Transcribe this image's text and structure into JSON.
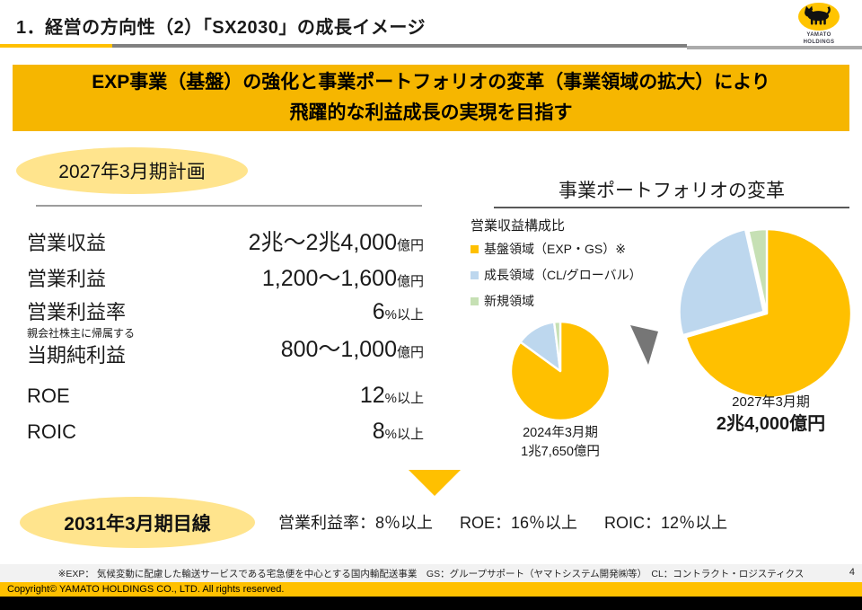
{
  "header": {
    "title": "1．経営の方向性（2）「SX2030」の成長イメージ",
    "logo": {
      "line1": "YAMATO",
      "line2": "HOLDINGS"
    }
  },
  "banner": {
    "line1": "EXP事業（基盤）の強化と事業ポートフォリオの変革（事業領域の拡大）により",
    "line2": "飛躍的な利益成長の実現を目指す"
  },
  "plan": {
    "badge": "2027年3月期計画",
    "rows": [
      {
        "label": "営業収益",
        "num": "2兆～2兆4,000",
        "unit": "億円"
      },
      {
        "label": "営業利益",
        "num": "1,200～1,600",
        "unit": "億円"
      },
      {
        "label": "営業利益率",
        "num": "6",
        "unit": "%以上"
      },
      {
        "label": "当期純利益",
        "sublabel": "親会社株主に帰属する",
        "num": "800～1,000",
        "unit": "億円"
      },
      {
        "label": "ROE",
        "num": "12",
        "unit": "%以上"
      },
      {
        "label": "ROIC",
        "num": "8",
        "unit": "%以上"
      }
    ]
  },
  "portfolio": {
    "title": "事業ポートフォリオの変革",
    "legend_title": "営業収益構成比",
    "legend": [
      {
        "label": "基盤領域（EXP・GS）※",
        "color": "#FFC000"
      },
      {
        "label": "成長領域（CL/グローバル）",
        "color": "#BDD7EE"
      },
      {
        "label": "新規領域",
        "color": "#C6E0B4"
      }
    ]
  },
  "target": {
    "badge": "2031年3月期目線",
    "metrics": [
      "営業利益率：8％以上",
      "ROE：16％以上",
      "ROIC：12％以上"
    ]
  },
  "footer": {
    "note": "※EXP： 気候変動に配慮した輸送サービスである宅急便を中心とする国内輸配送事業　GS：グループサポート（ヤマトシステム開発㈱等）　CL：コントラクト・ロジスティクス",
    "page": "4",
    "copyright": "Copyright© YAMATO HOLDINGS CO., LTD. All rights reserved."
  },
  "colors": {
    "accent_gold": "#FFC000",
    "banner_gold": "#F6B600",
    "badge_yellow": "#FFE48D",
    "base_area": "#FFC000",
    "growth_area": "#BDD7EE",
    "new_area": "#C6E0B4",
    "arrow_gray": "#767676"
  },
  "chart_data": [
    {
      "type": "pie",
      "title": "2024年3月期",
      "total_label": "1兆7,650億円",
      "legend_position": "left",
      "slices": [
        {
          "name": "基盤領域（EXP・GS）",
          "value": 85,
          "color": "#FFC000"
        },
        {
          "name": "成長領域（CL/グローバル）",
          "value": 13,
          "color": "#BDD7EE"
        },
        {
          "name": "新規領域",
          "value": 2,
          "color": "#C6E0B4"
        }
      ]
    },
    {
      "type": "pie",
      "title": "2027年3月期",
      "total_label": "2兆4,000億円",
      "legend_position": "left",
      "slices": [
        {
          "name": "基盤領域（EXP・GS）",
          "value": 70.5,
          "color": "#FFC000"
        },
        {
          "name": "成長領域（CL/グローバル）",
          "value": 26,
          "color": "#BDD7EE",
          "explode": 4
        },
        {
          "name": "新規領域",
          "value": 3.5,
          "color": "#C6E0B4"
        }
      ]
    }
  ]
}
